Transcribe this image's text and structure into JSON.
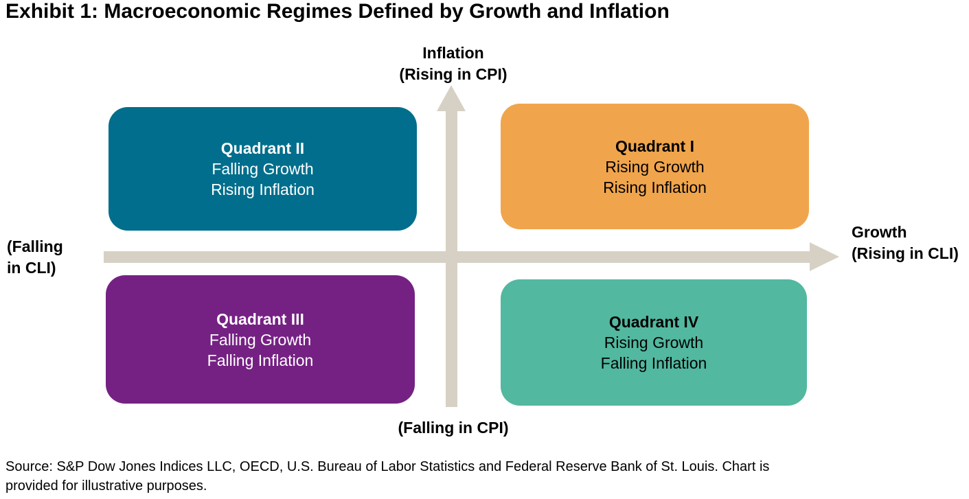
{
  "title": "Exhibit 1: Macroeconomic Regimes Defined by Growth and Inflation",
  "axis": {
    "color": "#D7D1C5",
    "labels": {
      "top": {
        "line1": "Inflation",
        "line2": "(Rising in CPI)"
      },
      "right": {
        "line1": "Growth",
        "line2": "(Rising in CLI)"
      },
      "left": {
        "line1": "(Falling",
        "line2": "in CLI)"
      },
      "bottom": "(Falling in CPI)"
    }
  },
  "quadrants": [
    {
      "name": "Quadrant I",
      "line1": "Rising Growth",
      "line2": "Rising Inflation",
      "position": "top-right",
      "color": "#F0A54C",
      "text_color": "#000000"
    },
    {
      "name": "Quadrant II",
      "line1": "Falling Growth",
      "line2": "Rising Inflation",
      "position": "top-left",
      "color": "#006E8C",
      "text_color": "#FFFFFF"
    },
    {
      "name": "Quadrant III",
      "line1": "Falling Growth",
      "line2": "Falling Inflation",
      "position": "bottom-left",
      "color": "#752183",
      "text_color": "#FFFFFF"
    },
    {
      "name": "Quadrant IV",
      "line1": "Rising Growth",
      "line2": "Falling Inflation",
      "position": "bottom-right",
      "color": "#52B8A0",
      "text_color": "#000000"
    }
  ],
  "source": {
    "line1": "Source: S&P Dow Jones Indices LLC, OECD, U.S. Bureau of Labor Statistics and Federal Reserve Bank of St. Louis. Chart is",
    "line2": "provided for illustrative purposes."
  }
}
